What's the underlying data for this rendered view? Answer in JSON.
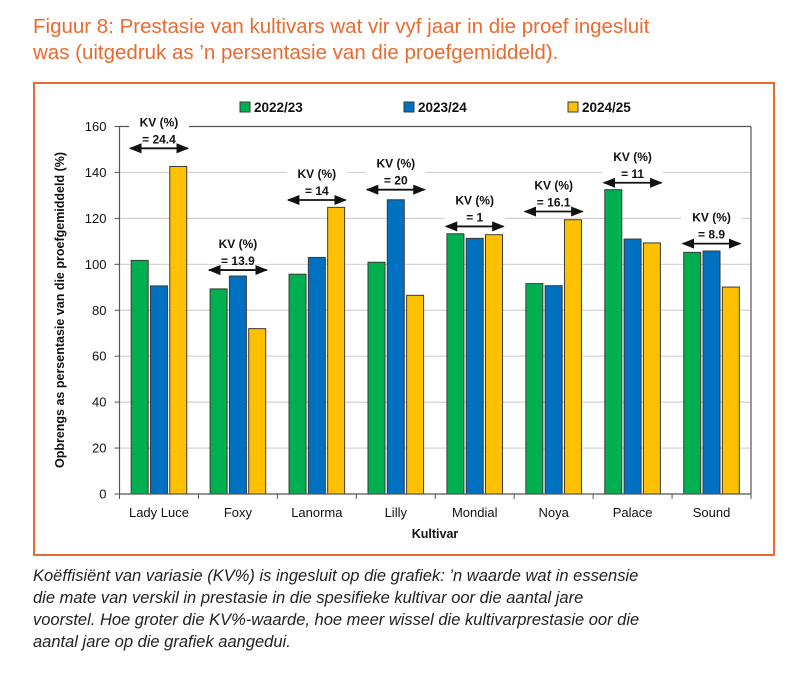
{
  "figure": {
    "title_line1": "Figuur 8: Prestasie van kultivars wat vir vyf jaar in die proef ingesluit",
    "title_line2": "was (uitgedruk as ’n persentasie van die proefgemiddeld).",
    "caption_lines": [
      "Koëffisiënt van variasie (KV%) is ingesluit op die grafiek: ’n waarde wat in essensie",
      "die mate van verskil in prestasie in die spesifieke kultivar oor die aantal jare",
      "voorstel. Hoe groter die KV%-waarde, hoe meer wissel die kultivarprestasie oor die",
      "aantal jare op die grafiek aangedui."
    ],
    "frame_color": "#E96A2F"
  },
  "chart_data": {
    "type": "bar",
    "title": "",
    "xlabel": "Kultivar",
    "ylabel": "Opbrengs as persentasie van die proefgemiddeld (%)",
    "ylim": [
      0,
      160
    ],
    "yticks": [
      0,
      20,
      40,
      60,
      80,
      100,
      120,
      140,
      160
    ],
    "grid": true,
    "legend_position": "top",
    "categories": [
      "Lady Luce",
      "Foxy",
      "Lanorma",
      "Lilly",
      "Mondial",
      "Noya",
      "Palace",
      "Sound"
    ],
    "series": [
      {
        "name": "2022/23",
        "color": "#00B050",
        "values": [
          101.7,
          89.3,
          95.7,
          100.9,
          113.3,
          91.6,
          132.5,
          105.2
        ]
      },
      {
        "name": "2023/24",
        "color": "#0070C0",
        "values": [
          90.6,
          94.9,
          103.0,
          128.1,
          111.3,
          90.7,
          111.0,
          105.8
        ]
      },
      {
        "name": "2024/25",
        "color": "#FFC000",
        "values": [
          142.6,
          72.0,
          124.8,
          86.5,
          112.9,
          119.4,
          109.3,
          90.1
        ]
      }
    ],
    "annotations": [
      {
        "category": "Lady Luce",
        "line1": "KV (%)",
        "line2": "= 24.4",
        "level": 150.5
      },
      {
        "category": "Foxy",
        "line1": "KV (%)",
        "line2": "= 13.9",
        "level": 97.5
      },
      {
        "category": "Lanorma",
        "line1": "KV (%)",
        "line2": "= 14",
        "level": 128
      },
      {
        "category": "Lilly",
        "line1": "KV (%)",
        "line2": "= 20",
        "level": 132.5
      },
      {
        "category": "Mondial",
        "line1": "KV (%)",
        "line2": "= 1",
        "level": 116.5
      },
      {
        "category": "Noya",
        "line1": "KV (%)",
        "line2": "= 16.1",
        "level": 123
      },
      {
        "category": "Palace",
        "line1": "KV (%)",
        "line2": "= 11",
        "level": 135.5
      },
      {
        "category": "Sound",
        "line1": "KV (%)",
        "line2": "= 8.9",
        "level": 109
      }
    ]
  }
}
